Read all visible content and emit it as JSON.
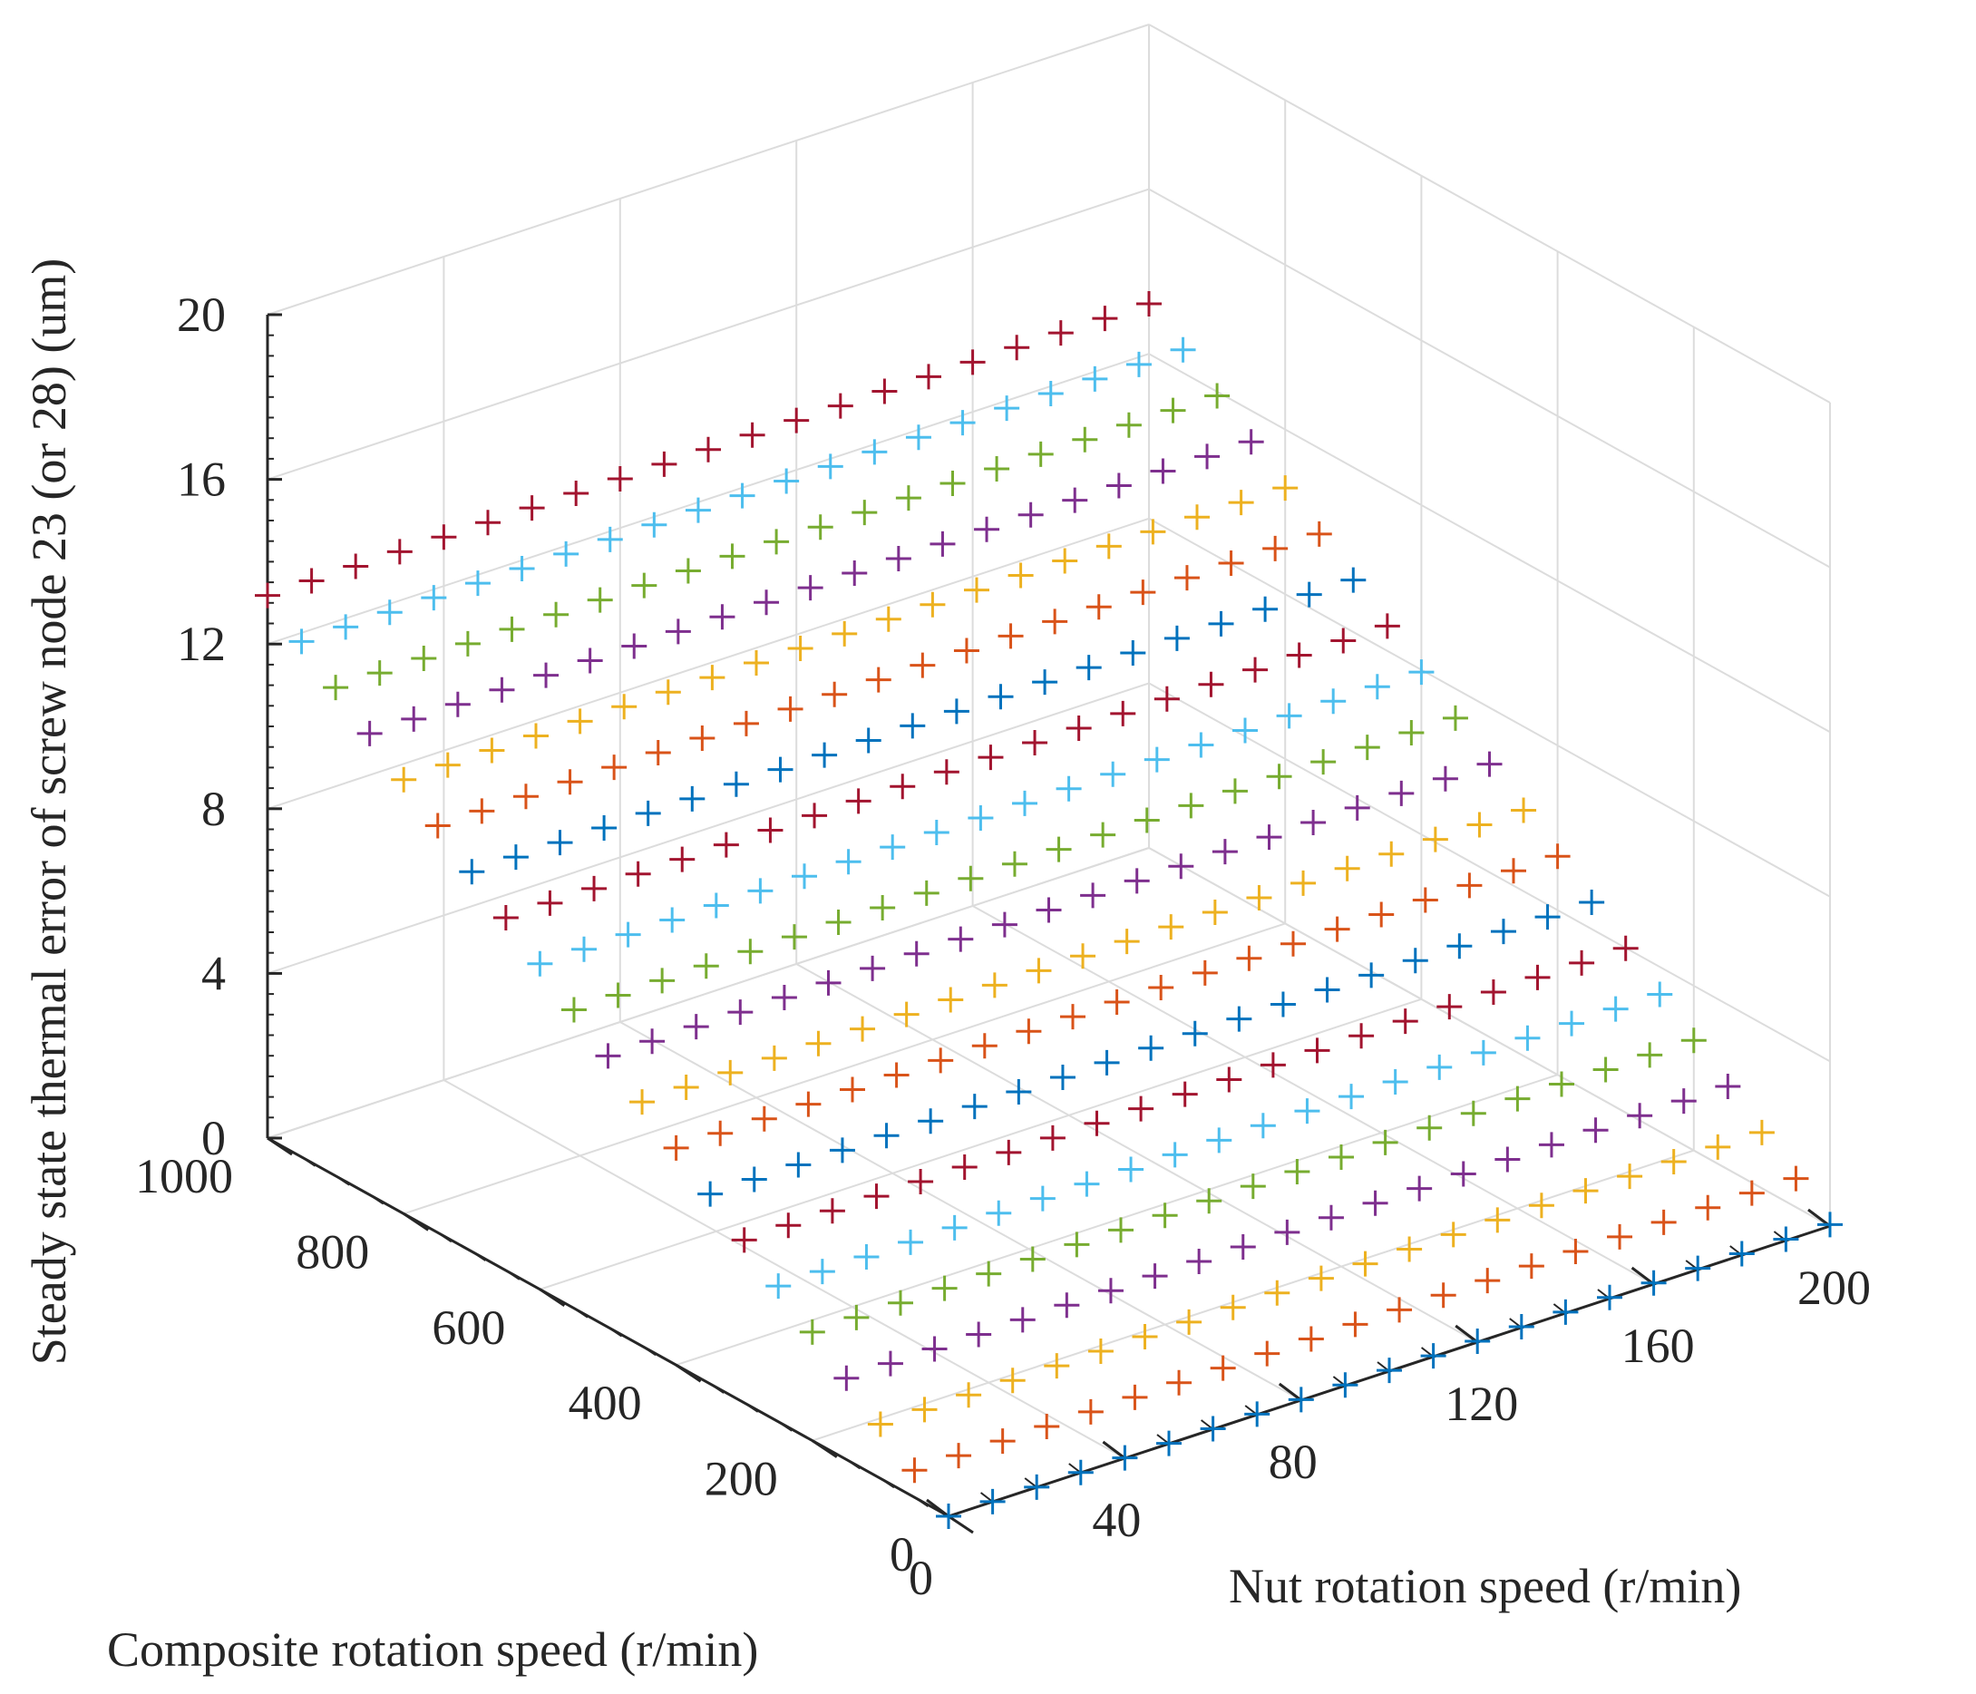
{
  "chart_data": {
    "type": "scatter3d",
    "title": "",
    "xlabel": "Nut rotation speed (r/min)",
    "ylabel": "Composite rotation speed (r/min)",
    "zlabel": "Steady state thermal error of screw node 23 (or 28) (um)",
    "xlim": [
      0,
      200
    ],
    "ylim": [
      0,
      1000
    ],
    "zlim": [
      0,
      20
    ],
    "xticks": [
      "0",
      "40",
      "80",
      "120",
      "160",
      "200"
    ],
    "yticks": [
      "0",
      "200",
      "400",
      "600",
      "800",
      "1000"
    ],
    "zticks": [
      "0",
      "4",
      "8",
      "12",
      "16",
      "20"
    ],
    "marker": "+",
    "grid": true,
    "x": [
      0,
      10,
      20,
      30,
      40,
      50,
      60,
      70,
      80,
      90,
      100,
      110,
      120,
      130,
      140,
      150,
      160,
      170,
      180,
      190,
      200
    ],
    "y": [
      0,
      50,
      100,
      150,
      200,
      250,
      300,
      350,
      400,
      450,
      500,
      550,
      600,
      650,
      700,
      750,
      800,
      850,
      900,
      950,
      1000
    ],
    "z_model": "z = 0.01318*y + 0.00018*x",
    "z_corners": {
      "x0_y0": 0.0,
      "x200_y0": 0.036,
      "x0_y1000": 13.18,
      "x200_y1000": 13.216
    },
    "series_colors": [
      "#0072BD",
      "#D95319",
      "#EDB120",
      "#7E2F8E",
      "#77AC30",
      "#4DBEEE",
      "#A2142F"
    ]
  }
}
